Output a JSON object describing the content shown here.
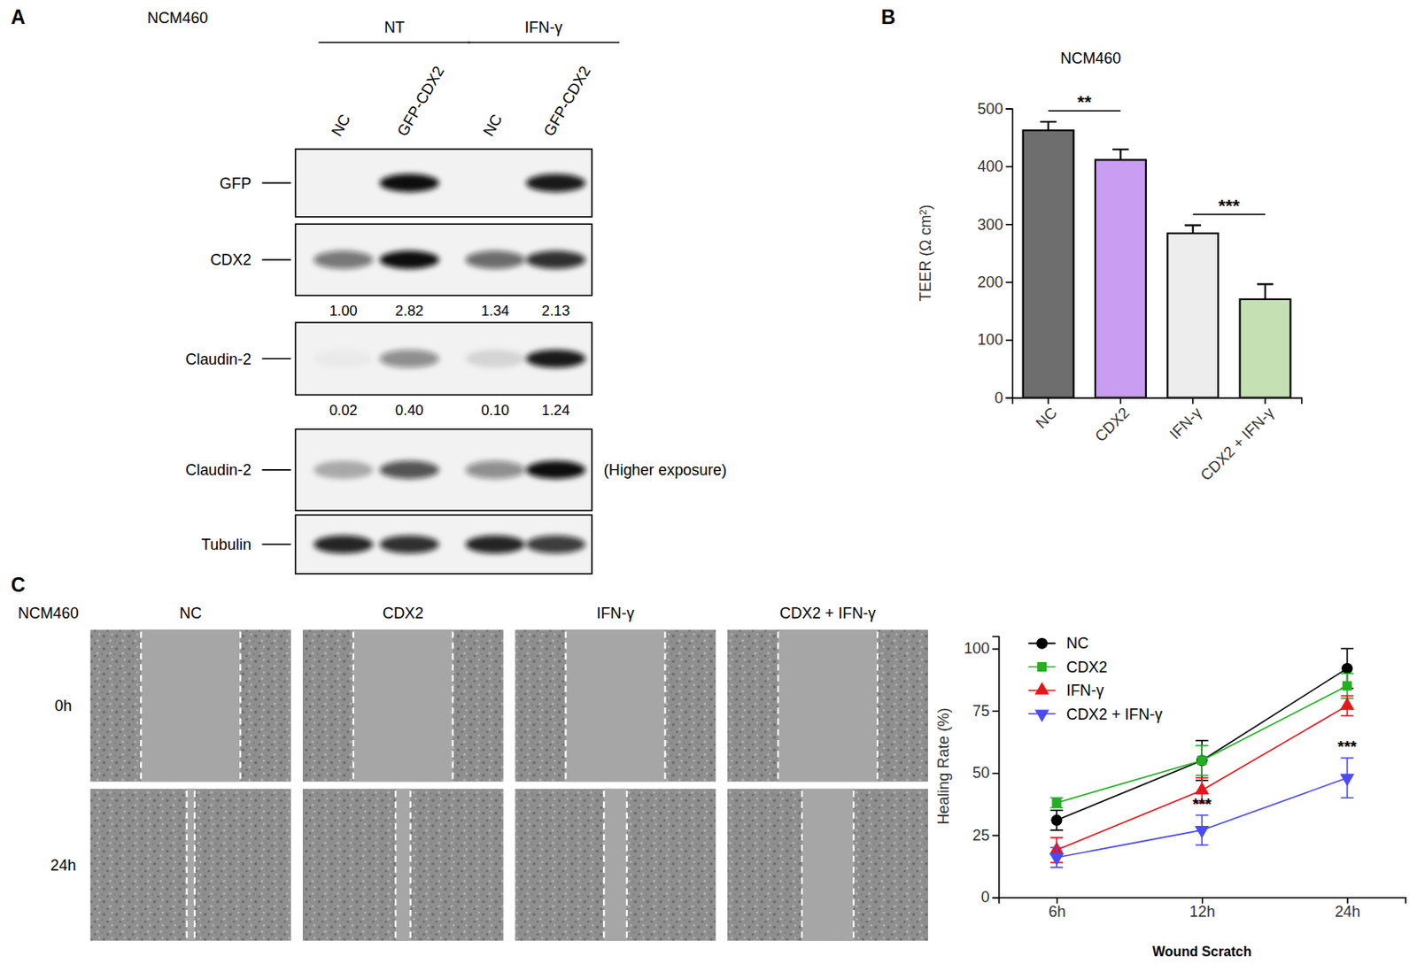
{
  "chart_data": [
    {
      "type": "blot",
      "panel": "A",
      "cell_line": "NCM460",
      "groups": [
        {
          "label": "NT",
          "lanes": [
            "NC",
            "GFP-CDX2"
          ]
        },
        {
          "label": "IFN-γ",
          "lanes": [
            "NC",
            "GFP-CDX2"
          ]
        }
      ],
      "rows": [
        {
          "name": "GFP",
          "levels": [
            0,
            1,
            0,
            0.95
          ]
        },
        {
          "name": "CDX2",
          "levels": [
            0.55,
            1,
            0.6,
            0.85
          ],
          "values": [
            1,
            2.82,
            1.34,
            2.13
          ],
          "value_labels": [
            "1.00",
            "2.82",
            "1.34",
            "2.13"
          ]
        },
        {
          "name": "Claudin-2",
          "levels": [
            0.03,
            0.45,
            0.12,
            0.95
          ],
          "values": [
            0.02,
            0.4,
            0.1,
            1.24
          ],
          "value_labels": [
            "0.02",
            "0.40",
            "0.10",
            "1.24"
          ]
        },
        {
          "name": "Claudin-2",
          "note": "(Higher exposure)",
          "levels": [
            0.3,
            0.7,
            0.45,
            1
          ]
        },
        {
          "name": "Tubulin",
          "levels": [
            0.9,
            0.85,
            0.9,
            0.8
          ]
        }
      ]
    },
    {
      "type": "bar",
      "panel": "B",
      "title": "NCM460",
      "y_label": "TEER (Ω cm²)",
      "categories": [
        "NC",
        "CDX2",
        "IFN-γ",
        "CDX2 + IFN-γ"
      ],
      "values": [
        462,
        411,
        284,
        170
      ],
      "errors": [
        15,
        18,
        14,
        26
      ],
      "colors": [
        "#6e6e6e",
        "#c89df2",
        "#ededed",
        "#c5e0b3"
      ],
      "ylim": [
        0,
        500
      ],
      "yticks": [
        0,
        100,
        200,
        300,
        400,
        500
      ],
      "annotations": [
        {
          "label": "**",
          "categories": [
            "NC",
            "CDX2"
          ]
        },
        {
          "label": "***",
          "categories": [
            "IFN-γ",
            "CDX2 + IFN-γ"
          ]
        }
      ]
    },
    {
      "type": "image_grid",
      "panel": "C",
      "cell_line": "NCM460",
      "columns": [
        "NC",
        "CDX2",
        "IFN-γ",
        "CDX2 + IFN-γ"
      ],
      "rows": [
        "0h",
        "24h"
      ]
    },
    {
      "type": "line",
      "x_label": "Wound Scratch",
      "y_label": "Healing Rate (%)",
      "categories": [
        "6h",
        "12h",
        "24h"
      ],
      "ylim": [
        0,
        105
      ],
      "yticks": [
        0,
        25,
        50,
        75,
        100
      ],
      "legend": "upper left",
      "series": [
        {
          "name": "NC",
          "color": "#000000",
          "marker": "circle",
          "values": [
            31,
            55,
            92
          ],
          "errors": [
            4,
            8,
            8
          ]
        },
        {
          "name": "CDX2",
          "color": "#22b022",
          "marker": "square",
          "values": [
            38,
            55,
            85
          ],
          "errors": [
            2,
            6,
            5
          ]
        },
        {
          "name": "IFN-γ",
          "color": "#e8151b",
          "marker": "triangle-up",
          "values": [
            19,
            43,
            77
          ],
          "errors": [
            5,
            5,
            4
          ]
        },
        {
          "name": "CDX2 + IFN-γ",
          "color": "#4b4bf2",
          "marker": "triangle-down",
          "values": [
            16,
            27,
            48
          ],
          "errors": [
            4,
            6,
            8
          ]
        }
      ],
      "annotations": [
        {
          "label": "***",
          "category": "12h",
          "series": "CDX2 + IFN-γ"
        },
        {
          "label": "***",
          "category": "24h",
          "series": "CDX2 + IFN-γ"
        }
      ]
    }
  ]
}
